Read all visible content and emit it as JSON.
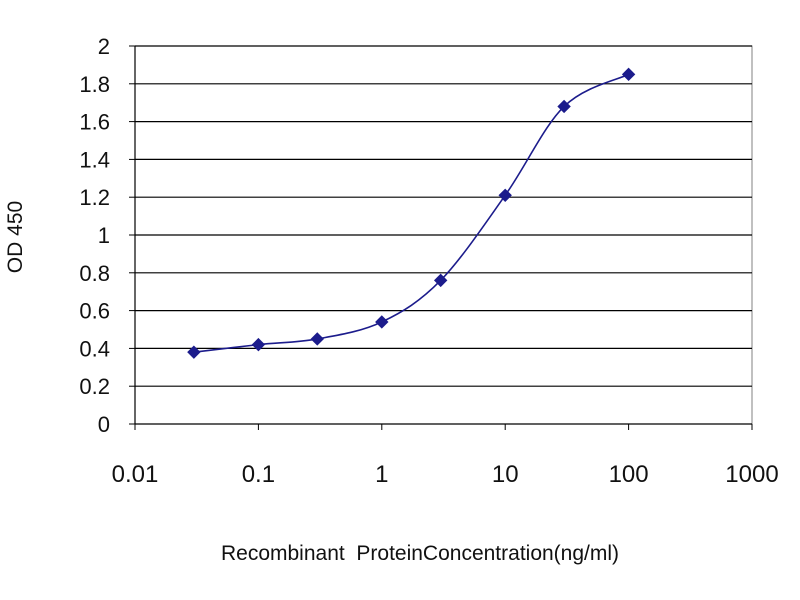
{
  "chart_data": {
    "type": "line",
    "title": "",
    "xlabel": "Recombinant  ProteinConcentration(ng/ml)",
    "ylabel": "OD 450",
    "x_scale": "log",
    "xlim": [
      0.01,
      1000
    ],
    "ylim": [
      0,
      2
    ],
    "x_ticks": [
      "0.01",
      "0.1",
      "1",
      "10",
      "100",
      "1000"
    ],
    "y_ticks": [
      "0",
      "0.2",
      "0.4",
      "0.6",
      "0.8",
      "1",
      "1.2",
      "1.4",
      "1.6",
      "1.8",
      "2"
    ],
    "grid": "horizontal",
    "legend": "none",
    "plot_background": "#ffffff",
    "gridline_color": "#000000",
    "series": [
      {
        "color": "#1c1c8c",
        "marker": "diamond",
        "x": [
          0.03,
          0.1,
          0.3,
          1,
          3,
          10,
          30,
          100
        ],
        "y": [
          0.38,
          0.42,
          0.45,
          0.54,
          0.76,
          1.21,
          1.68,
          1.85
        ]
      }
    ]
  }
}
